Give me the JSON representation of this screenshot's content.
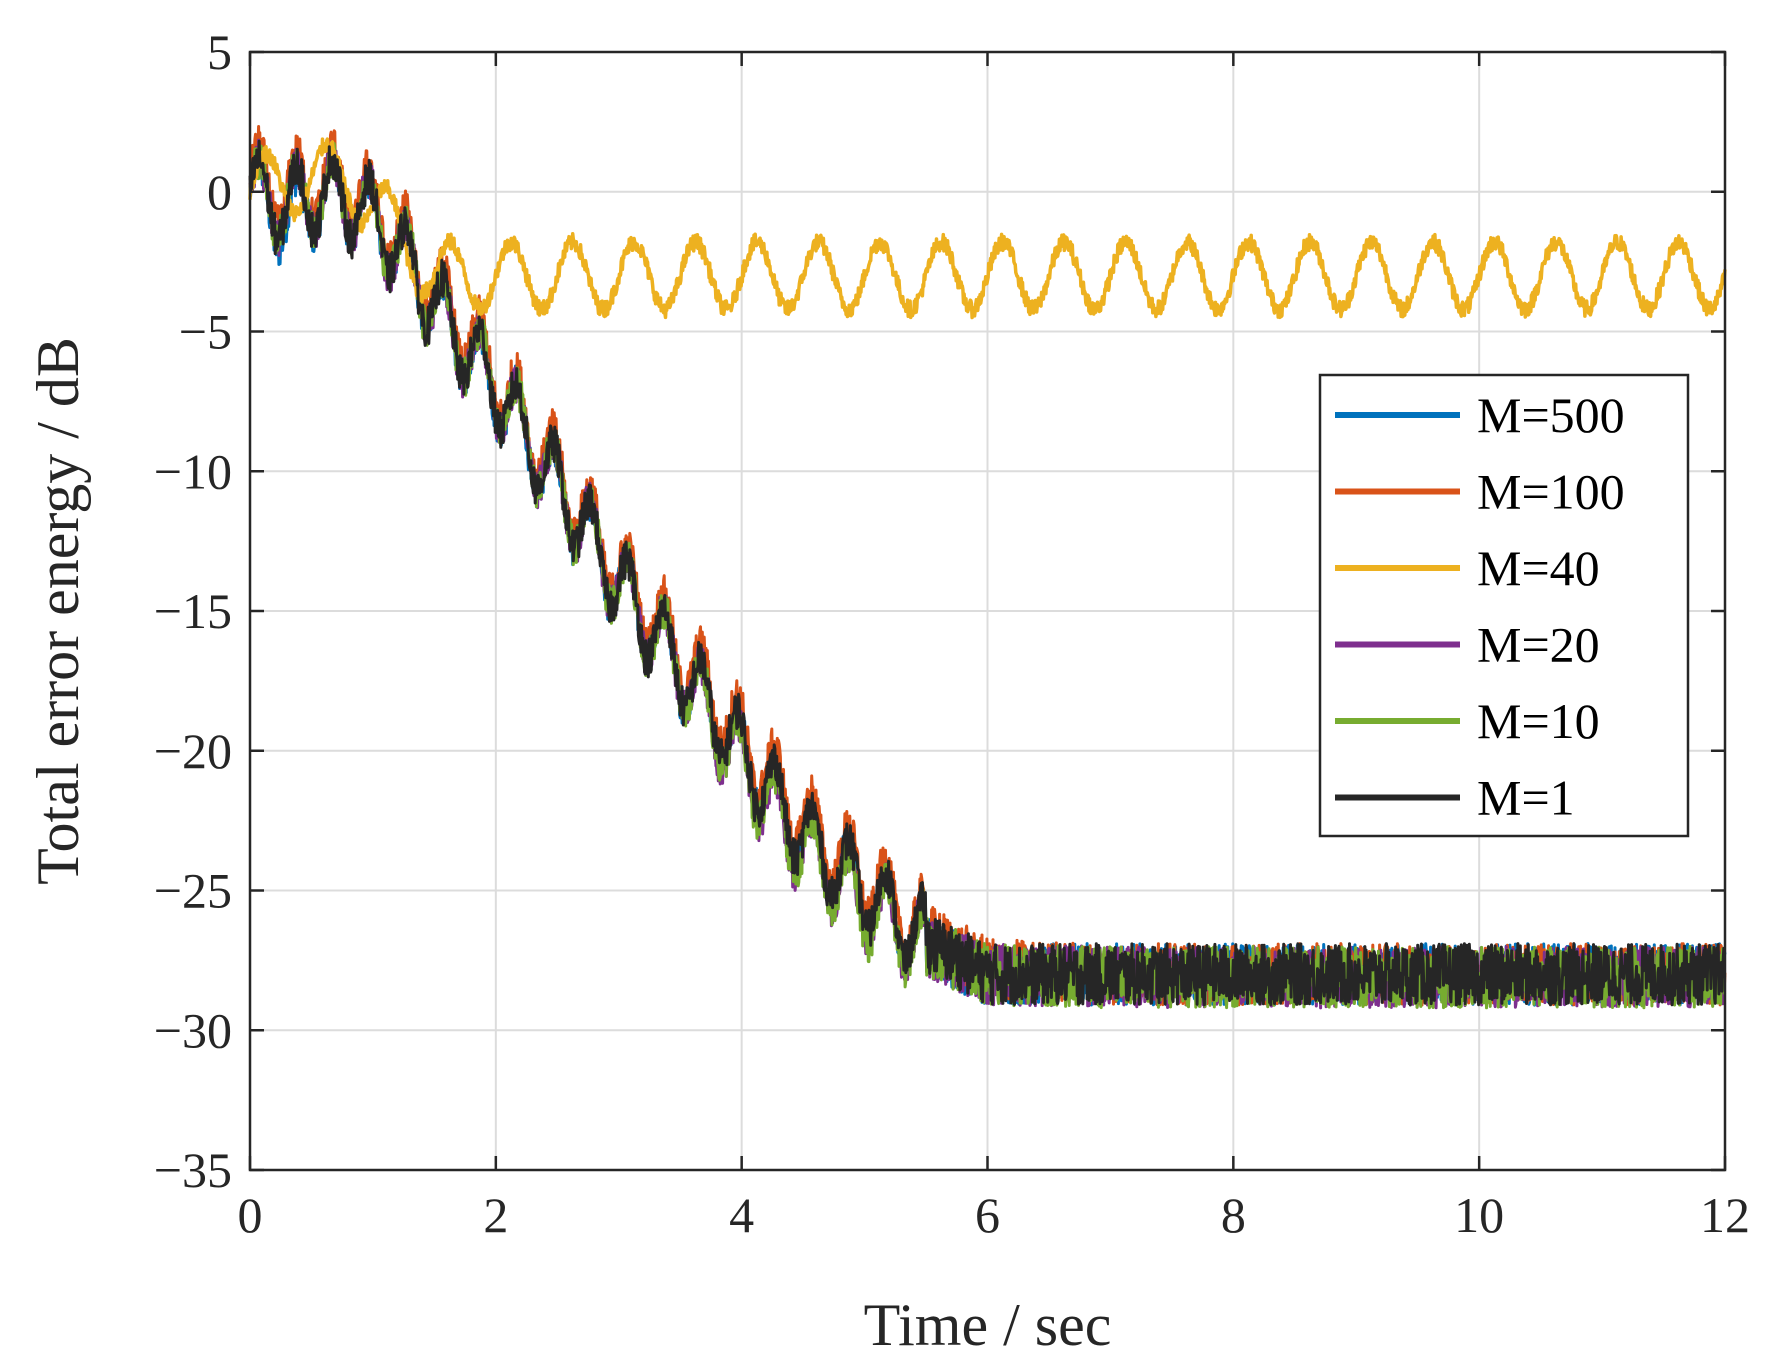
{
  "chart_data": {
    "type": "line",
    "title": "",
    "xlabel": "Time / sec",
    "ylabel": "Total error energy / dB",
    "xlim": [
      0,
      12
    ],
    "ylim": [
      -35,
      5
    ],
    "xticks": [
      0,
      2,
      4,
      6,
      8,
      10,
      12
    ],
    "yticks": [
      5,
      0,
      -5,
      -10,
      -15,
      -20,
      -25,
      -30,
      -35
    ],
    "xtick_labels": [
      "0",
      "2",
      "4",
      "6",
      "8",
      "10",
      "12"
    ],
    "ytick_labels": [
      "5",
      "0",
      "−5",
      "−10",
      "−15",
      "−20",
      "−25",
      "−30",
      "−35"
    ],
    "grid": true,
    "legend_position": "right, middle",
    "series": [
      {
        "name": "M=500",
        "color": "#0072BD",
        "x": [
          0,
          0.3,
          0.6,
          0.9,
          1.2,
          1.5,
          2.0,
          2.5,
          3.0,
          3.5,
          4.0,
          4.5,
          5.0,
          5.5,
          6.0,
          7.0,
          8.0,
          9.0,
          10.0,
          11.0,
          12.0
        ],
        "values": [
          0,
          -1,
          0,
          -0.5,
          -2,
          -4,
          -7,
          -10.5,
          -14,
          -17,
          -20,
          -23,
          -25,
          -27,
          -28,
          -28,
          -28,
          -28,
          -28,
          -28,
          -28
        ],
        "ripple": 1.3
      },
      {
        "name": "M=100",
        "color": "#D95319",
        "x": [
          0,
          0.3,
          0.6,
          0.9,
          1.2,
          1.5,
          2.0,
          2.5,
          3.0,
          3.5,
          4.0,
          4.5,
          5.0,
          5.5,
          6.0,
          7.0,
          8.0,
          9.0,
          10.0,
          11.0,
          12.0
        ],
        "values": [
          0.5,
          0,
          0.5,
          0,
          -1.5,
          -3.5,
          -6.5,
          -10,
          -13.5,
          -16.5,
          -19.5,
          -22.5,
          -24.5,
          -26.5,
          -27.8,
          -28,
          -28,
          -28,
          -28,
          -28,
          -28
        ],
        "ripple": 1.3
      },
      {
        "name": "M=40",
        "color": "#EDB120",
        "x": [
          0,
          0.4,
          0.8,
          1.2,
          1.5,
          1.8,
          2.5,
          4.0,
          6.0,
          8.0,
          10.0,
          12.0
        ],
        "values": [
          0,
          0.5,
          0.5,
          -1.5,
          -3,
          -3,
          -3,
          -3,
          -3,
          -3,
          -3,
          -3
        ],
        "ripple": 1.2
      },
      {
        "name": "M=20",
        "color": "#7E2F8E",
        "x": [
          0,
          0.3,
          0.6,
          0.9,
          1.2,
          1.5,
          2.0,
          2.5,
          3.0,
          3.5,
          4.0,
          4.5,
          5.0,
          5.5,
          6.0,
          7.0,
          8.0,
          9.0,
          10.0,
          11.0,
          12.0
        ],
        "values": [
          0,
          -0.5,
          0,
          -0.5,
          -2,
          -4,
          -7,
          -10.5,
          -14,
          -17,
          -20.5,
          -23.5,
          -25.5,
          -27,
          -28,
          -28.1,
          -28.1,
          -28.1,
          -28.1,
          -28.1,
          -28.1
        ],
        "ripple": 1.3
      },
      {
        "name": "M=10",
        "color": "#77AC30",
        "x": [
          0,
          0.3,
          0.6,
          0.9,
          1.2,
          1.5,
          2.0,
          2.5,
          3.0,
          3.5,
          4.0,
          4.5,
          5.0,
          5.5,
          6.0,
          7.0,
          8.0,
          9.0,
          10.0,
          11.0,
          12.0
        ],
        "values": [
          0,
          -0.5,
          0,
          -0.5,
          -2,
          -4,
          -7,
          -10.5,
          -14,
          -17,
          -20.5,
          -23.5,
          -25.5,
          -27,
          -28,
          -28.1,
          -28.1,
          -28.1,
          -28.1,
          -28.1,
          -28.1
        ],
        "ripple": 1.3
      },
      {
        "name": "M=1",
        "color": "#262626",
        "x": [
          0,
          0.3,
          0.6,
          0.9,
          1.2,
          1.5,
          2.0,
          2.5,
          3.0,
          3.5,
          4.0,
          4.5,
          5.0,
          5.5,
          6.0,
          7.0,
          8.0,
          9.0,
          10.0,
          11.0,
          12.0
        ],
        "values": [
          0,
          -0.5,
          0,
          -0.5,
          -2,
          -4,
          -7,
          -10.5,
          -14,
          -17,
          -20,
          -23,
          -25,
          -26.8,
          -28,
          -28,
          -28,
          -28,
          -28,
          -28,
          -28
        ],
        "ripple": 1.3
      }
    ]
  }
}
